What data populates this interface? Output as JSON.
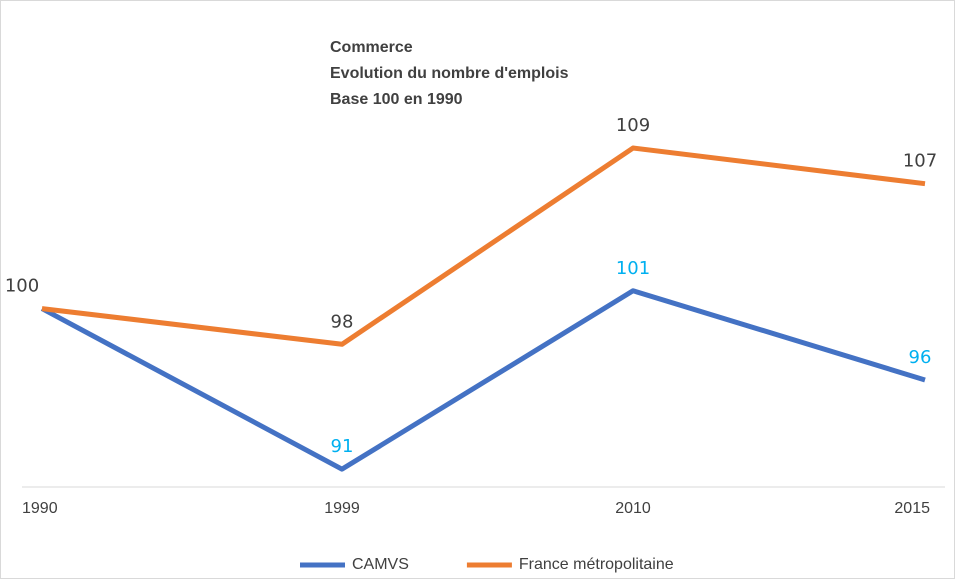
{
  "chart_data": {
    "type": "line",
    "title": [
      "Commerce",
      "Evolution du nombre d'emplois",
      "Base 100 en 1990"
    ],
    "categories": [
      "1990",
      "1999",
      "2010",
      "2015"
    ],
    "series": [
      {
        "name": "CAMVS",
        "color": "#4472c4",
        "label_color": "#00b0f0",
        "values": [
          100,
          91,
          101,
          96
        ],
        "value_labels": [
          null,
          91,
          101,
          96
        ]
      },
      {
        "name": "France métropolitaine",
        "color": "#ed7d31",
        "label_color": "#404040",
        "values": [
          100,
          98,
          109,
          107
        ],
        "value_labels": [
          100,
          98,
          109,
          107
        ]
      }
    ],
    "ylim": [
      90,
      112
    ]
  }
}
